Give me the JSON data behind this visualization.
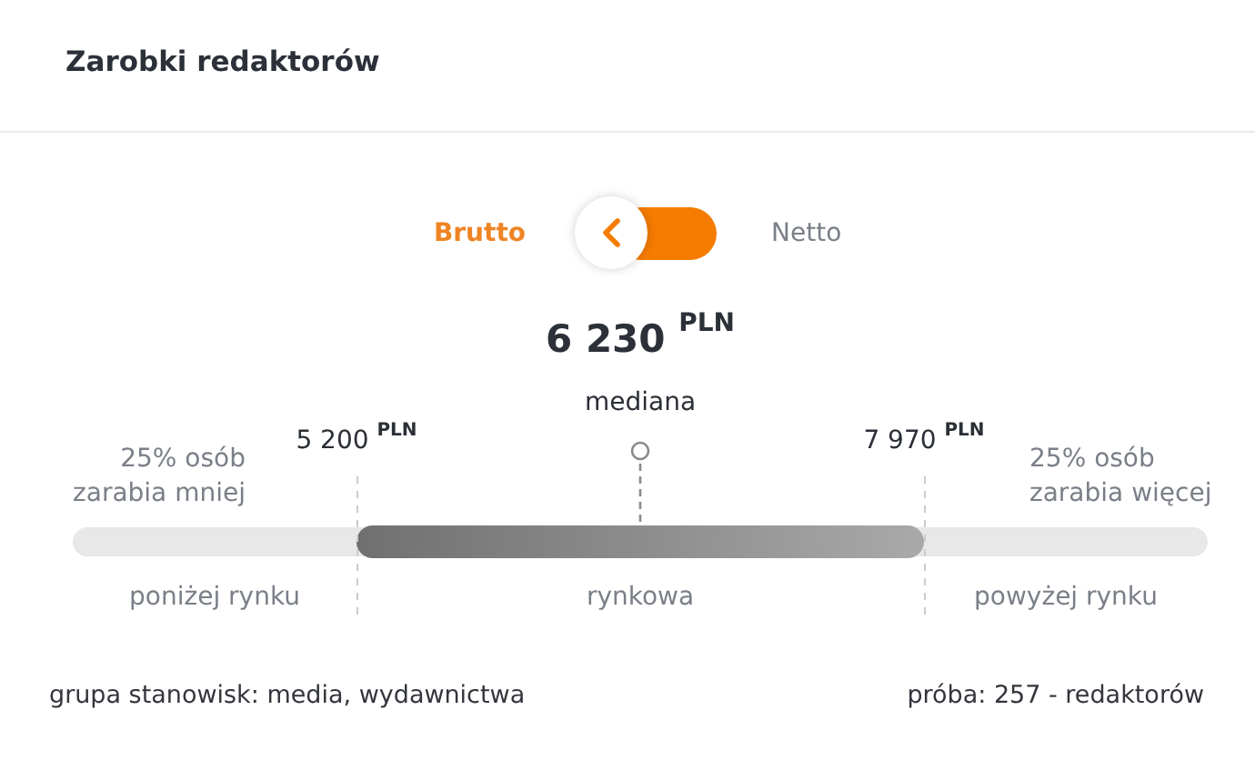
{
  "chart_data": {
    "type": "other",
    "title": "Zarobki redaktorów",
    "ylabel": "PLN",
    "categories": [
      "mediana"
    ],
    "values": [
      6230
    ],
    "color": "#8a8a8a",
    "data_labels": true,
    "annotations": [
      "5 200 $^{PLN}$",
      "7 970 $^{PLN}$",
      "25% osób zarabia mniej",
      "25% osób zarabia więcej",
      "poniżej rynku",
      "rynkowa",
      "powyżej rynku",
      "Brutto",
      "Netto",
      "grupa stanowisk: media, wydawnictwa",
      "próba: 257 - redaktorów"
    ]
  }
}
